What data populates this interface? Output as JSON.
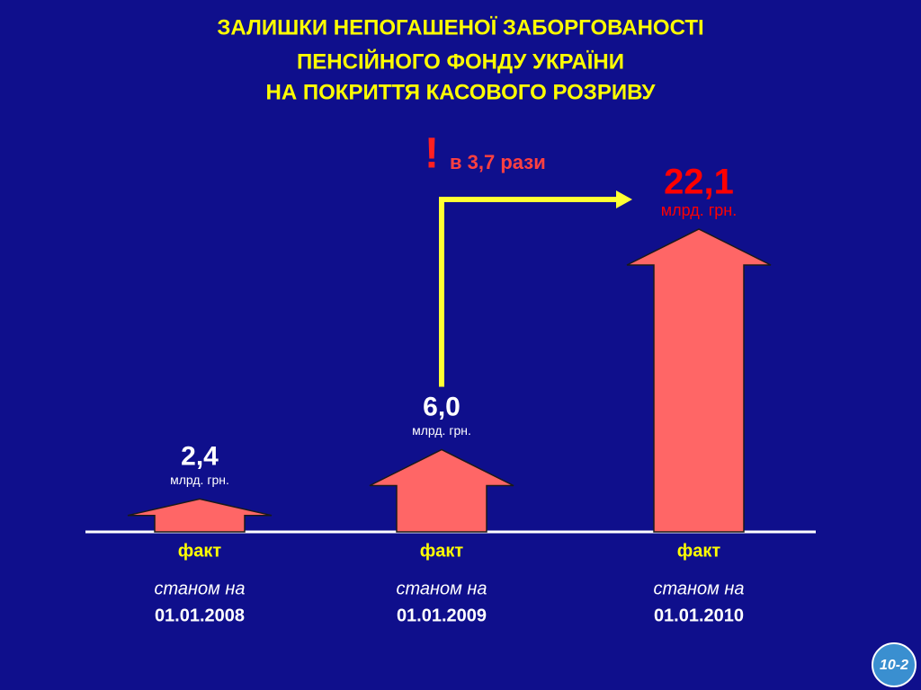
{
  "chart_data": {
    "type": "arrow",
    "title": [
      "ЗАЛИШКИ НЕПОГАШЕНОЇ ЗАБОРГОВАНОСТІ",
      "ПЕНСІЙНОГО ФОНДУ УКРАЇНИ",
      "НА ПОКРИТТЯ КАСОВОГО РОЗРИВУ"
    ],
    "categories": [
      "01.01.2008",
      "01.01.2009",
      "01.01.2010"
    ],
    "values": [
      2.4,
      6.0,
      22.1
    ],
    "value_labels": [
      "2,4",
      "6,0",
      "22,1"
    ],
    "label_colors": [
      "#ffffff",
      "#ffffff",
      "#ff0000"
    ],
    "unit": "млрд. грн.",
    "category_prefix": "станом на",
    "series_label": "факт",
    "color": "#ff6666",
    "annotation_mark": "!",
    "annotation": "в 3,7 рази",
    "slide_number": "10-2"
  }
}
